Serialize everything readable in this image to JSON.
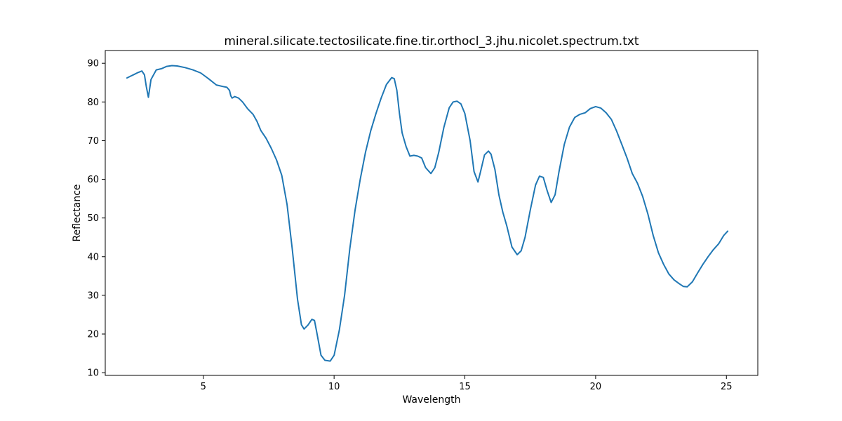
{
  "chart_data": {
    "type": "line",
    "title": "mineral.silicate.tectosilicate.fine.tir.orthocl_3.jhu.nicolet.spectrum.txt",
    "xlabel": "Wavelength",
    "ylabel": "Reflectance",
    "xlim": [
      1.25,
      26.2
    ],
    "ylim": [
      9.3,
      93.3
    ],
    "xticks": [
      5,
      10,
      15,
      20,
      25
    ],
    "yticks": [
      10,
      20,
      30,
      40,
      50,
      60,
      70,
      80,
      90
    ],
    "xtick_labels": [
      "5",
      "10",
      "15",
      "20",
      "25"
    ],
    "ytick_labels": [
      "10",
      "20",
      "30",
      "40",
      "50",
      "60",
      "70",
      "80",
      "90"
    ],
    "grid": false,
    "line_color": "#1f77b4",
    "series": [
      {
        "x": [
          2.08,
          2.2,
          2.35,
          2.5,
          2.65,
          2.75,
          2.82,
          2.9,
          3.0,
          3.2,
          3.4,
          3.6,
          3.8,
          4.0,
          4.3,
          4.6,
          4.9,
          5.2,
          5.5,
          5.75,
          5.9,
          6.0,
          6.05,
          6.1,
          6.2,
          6.35,
          6.5,
          6.7,
          6.9,
          7.05,
          7.2,
          7.4,
          7.6,
          7.8,
          8.0,
          8.2,
          8.4,
          8.6,
          8.75,
          8.85,
          9.0,
          9.15,
          9.25,
          9.35,
          9.5,
          9.65,
          9.85,
          10.0,
          10.2,
          10.4,
          10.6,
          10.8,
          11.0,
          11.2,
          11.4,
          11.6,
          11.8,
          12.0,
          12.2,
          12.3,
          12.4,
          12.5,
          12.6,
          12.75,
          12.9,
          13.05,
          13.2,
          13.35,
          13.5,
          13.7,
          13.85,
          14.0,
          14.2,
          14.4,
          14.55,
          14.7,
          14.85,
          15.0,
          15.2,
          15.35,
          15.5,
          15.6,
          15.75,
          15.9,
          16.0,
          16.15,
          16.3,
          16.45,
          16.6,
          16.8,
          17.0,
          17.15,
          17.3,
          17.5,
          17.7,
          17.85,
          18.0,
          18.15,
          18.3,
          18.45,
          18.6,
          18.8,
          19.0,
          19.2,
          19.4,
          19.6,
          19.8,
          20.0,
          20.2,
          20.4,
          20.6,
          20.8,
          21.0,
          21.2,
          21.4,
          21.6,
          21.8,
          22.0,
          22.2,
          22.4,
          22.6,
          22.8,
          23.0,
          23.2,
          23.35,
          23.5,
          23.7,
          23.9,
          24.1,
          24.3,
          24.5,
          24.7,
          24.9,
          25.05
        ],
        "y": [
          86.2,
          86.6,
          87.1,
          87.6,
          88.0,
          87.0,
          84.0,
          81.2,
          85.8,
          88.3,
          88.6,
          89.2,
          89.4,
          89.3,
          88.9,
          88.3,
          87.5,
          86.0,
          84.4,
          84.0,
          83.8,
          83.0,
          81.6,
          81.0,
          81.4,
          81.0,
          80.0,
          78.2,
          76.8,
          75.0,
          72.6,
          70.6,
          68.0,
          65.0,
          61.0,
          53.5,
          42.0,
          29.0,
          22.4,
          21.3,
          22.3,
          23.8,
          23.5,
          20.0,
          14.5,
          13.2,
          13.0,
          14.5,
          21.0,
          30.0,
          42.0,
          52.0,
          60.0,
          67.0,
          72.5,
          77.0,
          81.0,
          84.5,
          86.3,
          86.0,
          83.0,
          77.0,
          72.0,
          68.5,
          66.0,
          66.2,
          66.0,
          65.5,
          63.0,
          61.5,
          63.0,
          67.0,
          73.5,
          78.5,
          80.0,
          80.2,
          79.5,
          77.0,
          70.0,
          62.0,
          59.3,
          62.0,
          66.3,
          67.3,
          66.5,
          62.5,
          56.0,
          51.5,
          48.0,
          42.5,
          40.5,
          41.5,
          45.0,
          52.0,
          58.5,
          60.8,
          60.5,
          57.0,
          54.0,
          56.0,
          62.0,
          69.0,
          73.5,
          76.0,
          76.8,
          77.2,
          78.3,
          78.8,
          78.4,
          77.2,
          75.5,
          72.5,
          69.0,
          65.5,
          61.5,
          59.0,
          55.5,
          51.0,
          45.5,
          41.0,
          38.0,
          35.5,
          34.0,
          33.0,
          32.3,
          32.2,
          33.5,
          35.8,
          38.0,
          40.0,
          41.8,
          43.3,
          45.5,
          46.6
        ]
      }
    ]
  }
}
